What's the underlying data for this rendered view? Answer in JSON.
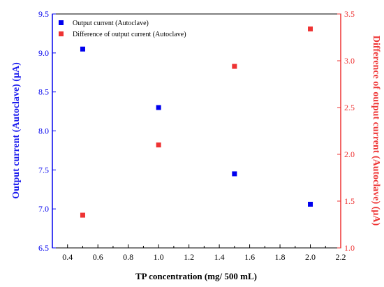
{
  "chart_data": {
    "type": "scatter",
    "xlabel": "TP concentration (mg/ 500 mL)",
    "ylabel_left": "Output current (Autoclave) (µA)",
    "ylabel_right": "Difference of output current (Autoclave) (µA)",
    "xlim": [
      0.3,
      2.2
    ],
    "ylim_left": [
      6.5,
      9.5
    ],
    "ylim_right": [
      1.0,
      3.5
    ],
    "x_ticks": [
      0.4,
      0.6,
      0.8,
      1.0,
      1.2,
      1.4,
      1.6,
      1.8,
      2.0,
      2.2
    ],
    "y_left_ticks": [
      6.5,
      7.0,
      7.5,
      8.0,
      8.5,
      9.0,
      9.5
    ],
    "y_right_ticks": [
      1.0,
      1.5,
      2.0,
      2.5,
      3.0,
      3.5
    ],
    "x_tick_labels": [
      "0.4",
      "0.6",
      "0.8",
      "1.0",
      "1.2",
      "1.4",
      "1.6",
      "1.8",
      "2.0",
      "2.2"
    ],
    "y_left_tick_labels": [
      "6.5",
      "7.0",
      "7.5",
      "8.0",
      "8.5",
      "9.0",
      "9.5"
    ],
    "y_right_tick_labels": [
      "1.0",
      "1.5",
      "2.0",
      "2.5",
      "3.0",
      "3.5"
    ],
    "legend_position": "top-left",
    "series": [
      {
        "name": "Output current (Autoclave)",
        "axis": "left",
        "color": "#0000ee",
        "x": [
          0.5,
          1.0,
          1.5,
          2.0
        ],
        "y": [
          9.05,
          8.3,
          7.45,
          7.06
        ]
      },
      {
        "name": "Difference of output current (Autoclave)",
        "axis": "right",
        "color": "#ee3333",
        "x": [
          0.5,
          1.0,
          1.5,
          2.0
        ],
        "y": [
          1.35,
          2.1,
          2.94,
          3.34
        ]
      }
    ]
  }
}
